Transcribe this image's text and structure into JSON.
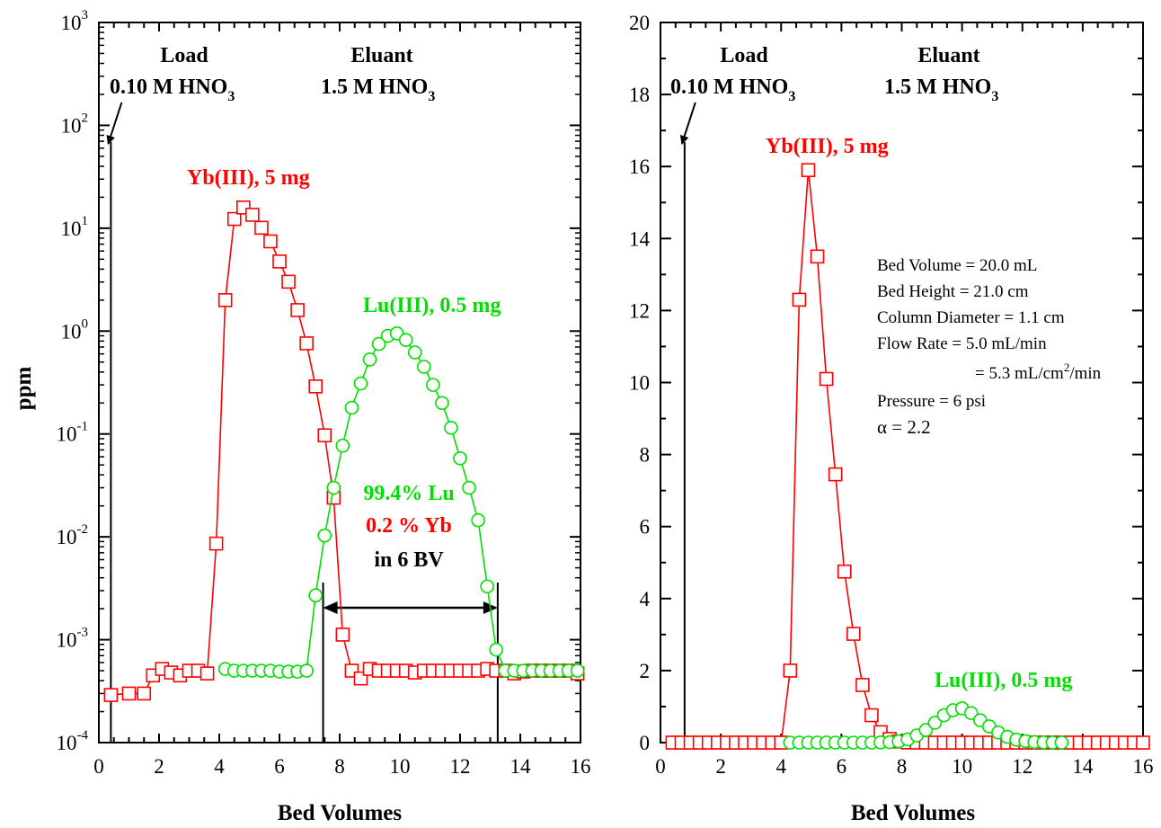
{
  "colors": {
    "yb": "#ff0000",
    "lu": "#00e000",
    "axis": "#000000"
  },
  "chart_data": [
    {
      "type": "scatter",
      "xlabel": "Bed Volumes",
      "ylabel": "ppm",
      "xlim": [
        0,
        16
      ],
      "ylim": [
        0.0001,
        1000
      ],
      "yscale": "log",
      "x_ticks": [
        "0",
        "2",
        "4",
        "6",
        "8",
        "10",
        "12",
        "14",
        "16"
      ],
      "y_ticks": [
        {
          "base": "10",
          "exp": "-4"
        },
        {
          "base": "10",
          "exp": "-3"
        },
        {
          "base": "10",
          "exp": "-2"
        },
        {
          "base": "10",
          "exp": "-1"
        },
        {
          "base": "10",
          "exp": "0"
        },
        {
          "base": "10",
          "exp": "1"
        },
        {
          "base": "10",
          "exp": "2"
        },
        {
          "base": "10",
          "exp": "3"
        }
      ],
      "annotations": {
        "load_title": "Load",
        "load_conc": "0.10 M HNO",
        "load_sub": "3",
        "eluant_title": "Eluant",
        "eluant_conc": "1.5 M HNO",
        "eluant_sub": "3",
        "yb_label": "Yb(III), 5 mg",
        "lu_label": "Lu(III), 0.5 mg",
        "lu_pct": "99.4% Lu",
        "yb_pct": "0.2 % Yb",
        "in_bv": "in 6 BV"
      },
      "load_line_x": 0.4,
      "cut_lines_x": [
        7.45,
        13.25
      ],
      "series": [
        {
          "name": "Yb(III), 5 mg",
          "marker": "square",
          "x": [
            0.4,
            1.0,
            1.5,
            1.8,
            2.1,
            2.4,
            2.7,
            3.0,
            3.3,
            3.6,
            3.9,
            4.2,
            4.5,
            4.8,
            5.1,
            5.4,
            5.7,
            6.0,
            6.3,
            6.6,
            6.9,
            7.2,
            7.5,
            7.8,
            8.1,
            8.4,
            8.7,
            9.0,
            9.3,
            9.6,
            9.9,
            10.2,
            10.5,
            10.8,
            11.1,
            11.4,
            11.7,
            12.0,
            12.3,
            12.6,
            12.9,
            13.2,
            13.5,
            13.8,
            14.1,
            14.4,
            14.7,
            15.0,
            15.3,
            15.6,
            15.9
          ],
          "values": [
            0.00029,
            0.0003,
            0.0003,
            0.00045,
            0.00052,
            0.00048,
            0.00045,
            0.0005,
            0.0005,
            0.00047,
            0.0086,
            2.0,
            12.3,
            15.9,
            13.5,
            10.1,
            7.45,
            4.75,
            3.02,
            1.6,
            0.76,
            0.29,
            0.097,
            0.024,
            0.00112,
            0.0005,
            0.00042,
            0.00052,
            0.0005,
            0.0005,
            0.0005,
            0.0005,
            0.00048,
            0.0005,
            0.0005,
            0.0005,
            0.0005,
            0.0005,
            0.0005,
            0.0005,
            0.00052,
            0.0005,
            0.0005,
            0.00047,
            0.00049,
            0.0005,
            0.0005,
            0.0005,
            0.0005,
            0.0005,
            0.00047
          ]
        },
        {
          "name": "Lu(III), 0.5 mg",
          "marker": "circle",
          "x": [
            4.2,
            4.5,
            4.8,
            5.1,
            5.4,
            5.7,
            6.0,
            6.3,
            6.6,
            6.9,
            7.2,
            7.5,
            7.8,
            8.1,
            8.4,
            8.7,
            9.0,
            9.3,
            9.6,
            9.9,
            10.2,
            10.5,
            10.8,
            11.1,
            11.4,
            11.7,
            12.0,
            12.3,
            12.6,
            12.9,
            13.2,
            13.5,
            13.8,
            14.1,
            14.4,
            14.7,
            15.0,
            15.3,
            15.6,
            15.9
          ],
          "values": [
            0.00052,
            0.0005,
            0.0005,
            0.0005,
            0.0005,
            0.0005,
            0.00049,
            0.00049,
            0.00049,
            0.0005,
            0.0027,
            0.0103,
            0.03,
            0.077,
            0.18,
            0.31,
            0.53,
            0.75,
            0.9,
            0.95,
            0.82,
            0.62,
            0.45,
            0.3,
            0.2,
            0.115,
            0.058,
            0.03,
            0.0145,
            0.0033,
            0.0008,
            0.0005,
            0.0005,
            0.0005,
            0.0005,
            0.0005,
            0.0005,
            0.0005,
            0.0005,
            0.0005
          ]
        }
      ]
    },
    {
      "type": "scatter",
      "xlabel": "Bed Volumes",
      "ylabel": "",
      "xlim": [
        0,
        16
      ],
      "ylim": [
        0,
        20
      ],
      "yscale": "linear",
      "x_ticks": [
        "0",
        "2",
        "4",
        "6",
        "8",
        "10",
        "12",
        "14",
        "16"
      ],
      "y_ticks": [
        "0",
        "2",
        "4",
        "6",
        "8",
        "10",
        "12",
        "14",
        "16",
        "18",
        "20"
      ],
      "annotations": {
        "load_title": "Load",
        "load_conc": "0.10 M HNO",
        "load_sub": "3",
        "eluant_title": "Eluant",
        "eluant_conc": "1.5 M HNO",
        "eluant_sub": "3",
        "yb_label": "Yb(III), 5 mg",
        "lu_label": "Lu(III), 0.5 mg",
        "info_bed_volume": "Bed Volume = 20.0 mL",
        "info_bed_height": "Bed Height = 21.0 cm",
        "info_column_diameter": "Column Diameter = 1.1 cm",
        "info_flow_rate": "Flow Rate = 5.0 mL/min",
        "info_flow_rate2_a": "= 5.3 mL/cm",
        "info_flow_rate2_sup": "2",
        "info_flow_rate2_b": "/min",
        "info_pressure": "Pressure = 6 psi",
        "info_alpha": "α = 2.2"
      },
      "load_line_x": 0.8,
      "series": [
        {
          "name": "Yb(III), 5 mg",
          "marker": "square",
          "x": [
            0.4,
            0.7,
            1.0,
            1.3,
            1.6,
            1.9,
            2.2,
            2.5,
            2.8,
            3.1,
            3.4,
            3.7,
            4.0,
            4.3,
            4.6,
            4.9,
            5.2,
            5.5,
            5.8,
            6.1,
            6.4,
            6.7,
            7.0,
            7.3,
            7.6,
            7.9,
            8.2,
            8.5,
            8.8,
            9.1,
            9.4,
            9.7,
            10.0,
            10.3,
            10.6,
            10.9,
            11.2,
            11.5,
            11.8,
            12.1,
            12.4,
            12.7,
            13.0,
            13.3,
            13.6,
            13.9,
            14.2,
            14.5,
            14.8,
            15.1,
            15.4,
            15.7,
            16.0
          ],
          "values": [
            0,
            0,
            0,
            0,
            0,
            0,
            0,
            0,
            0,
            0,
            0,
            0,
            0,
            2.0,
            12.3,
            15.9,
            13.5,
            10.1,
            7.45,
            4.75,
            3.02,
            1.6,
            0.76,
            0.29,
            0.1,
            0.03,
            0.005,
            0,
            0,
            0,
            0,
            0,
            0,
            0,
            0,
            0,
            0,
            0,
            0,
            0,
            0,
            0,
            0,
            0,
            0,
            0,
            0,
            0,
            0,
            0,
            0,
            0,
            0
          ]
        },
        {
          "name": "Lu(III), 0.5 mg",
          "marker": "circle",
          "x": [
            4.3,
            4.6,
            4.9,
            5.2,
            5.5,
            5.8,
            6.1,
            6.4,
            6.7,
            7.0,
            7.3,
            7.6,
            7.9,
            8.2,
            8.5,
            8.8,
            9.1,
            9.4,
            9.7,
            10.0,
            10.3,
            10.6,
            10.9,
            11.2,
            11.5,
            11.8,
            12.1,
            12.4,
            12.7,
            13.0,
            13.3
          ],
          "values": [
            0,
            0,
            0,
            0,
            0,
            0,
            0,
            0,
            0,
            0,
            0.005,
            0.012,
            0.035,
            0.09,
            0.2,
            0.35,
            0.55,
            0.76,
            0.9,
            0.95,
            0.82,
            0.62,
            0.45,
            0.28,
            0.16,
            0.08,
            0.04,
            0.015,
            0.005,
            0,
            0
          ]
        }
      ]
    }
  ]
}
